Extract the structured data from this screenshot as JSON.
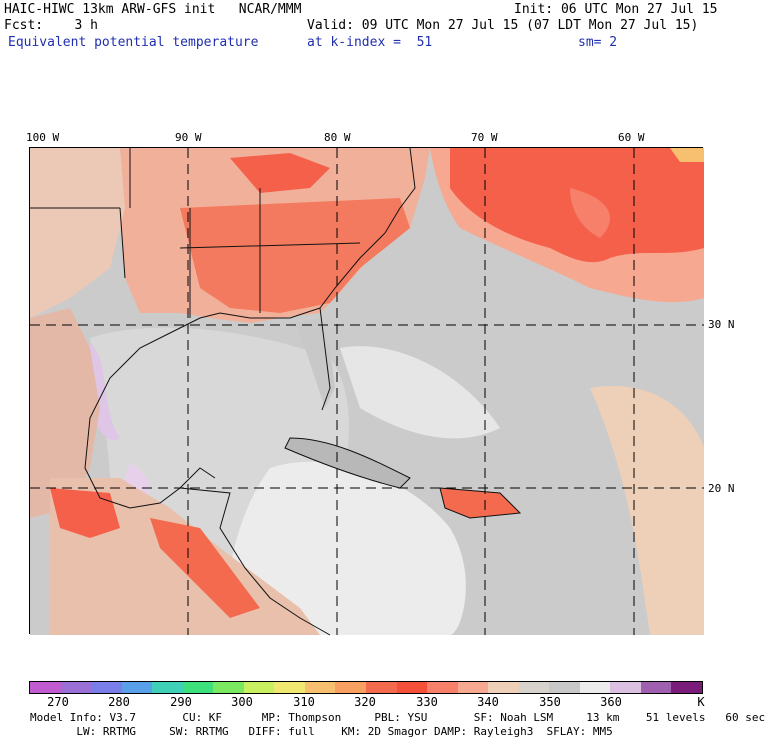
{
  "header": {
    "title": "HAIC-HIWC 13km ARW-GFS init   NCAR/MMM",
    "init": "Init: 06 UTC Mon 27 Jul 15",
    "fcst": "Fcst:    3 h",
    "valid": "Valid: 09 UTC Mon 27 Jul 15 (07 LDT Mon 27 Jul 15)",
    "field": "Equivalent potential temperature",
    "level": "at k-index =  51",
    "smoothing": "sm= 2"
  },
  "axes": {
    "lon_labels": [
      "100 W",
      "90 W",
      "80 W",
      "70 W",
      "60 W"
    ],
    "lat_labels": [
      "30 N",
      "20 N"
    ]
  },
  "colorbar": {
    "colors": [
      "#c05bd0",
      "#9a6fd6",
      "#7a7ee8",
      "#5aa0e8",
      "#40d0b8",
      "#3de07a",
      "#7ae860",
      "#c8f060",
      "#f0e870",
      "#f6c070",
      "#f8a060",
      "#f46a4e",
      "#f5513a",
      "#f7806a",
      "#f6a890",
      "#eed0b8",
      "#d8d2cc",
      "#c8c8c8",
      "#ececec",
      "#dcc0e2",
      "#a060b0",
      "#7a1c7a"
    ],
    "labels": [
      "270",
      "280",
      "290",
      "300",
      "310",
      "320",
      "330",
      "340",
      "350",
      "360",
      "K"
    ]
  },
  "footer": {
    "line1": "Model Info: V3.7       CU: KF      MP: Thompson     PBL: YSU       SF: Noah LSM     13 km    51 levels   60 sec",
    "line2": "       LW: RRTMG     SW: RRTMG   DIFF: full    KM: 2D Smagor DAMP: Rayleigh3  SFLAY: MM5"
  }
}
